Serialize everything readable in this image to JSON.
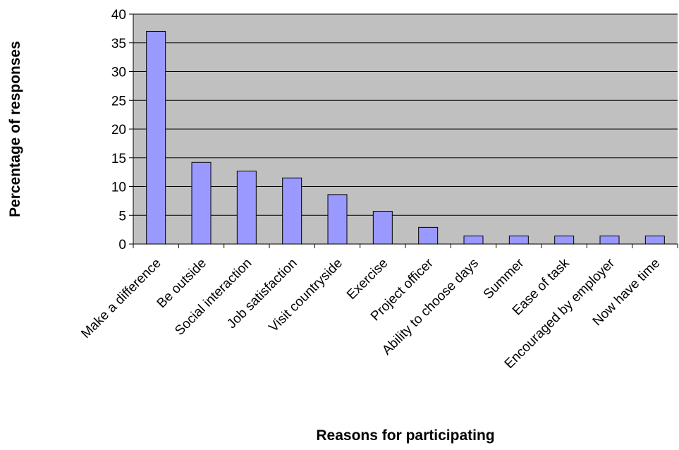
{
  "colors": {
    "plot_background": "#c0c0c0",
    "bar_fill": "#9999ff",
    "bar_stroke": "#000000",
    "grid": "#000000"
  },
  "chart_data": {
    "type": "bar",
    "title": "",
    "xlabel": "Reasons for participating",
    "ylabel": "Percentage of responses",
    "ylim": [
      0,
      40
    ],
    "yticks": [
      0,
      5,
      10,
      15,
      20,
      25,
      30,
      35,
      40
    ],
    "grid": true,
    "legend": "none",
    "categories": [
      "Make a difference",
      "Be outside",
      "Social interaction",
      "Job satisfaction",
      "Visit countryside",
      "Exercise",
      "Project officer",
      "Ability to choose days",
      "Summer",
      "Ease of task",
      "Encouraged by employer",
      "Now have time"
    ],
    "values": [
      37,
      14.2,
      12.7,
      11.5,
      8.6,
      5.7,
      2.9,
      1.4,
      1.4,
      1.4,
      1.4,
      1.4
    ]
  }
}
